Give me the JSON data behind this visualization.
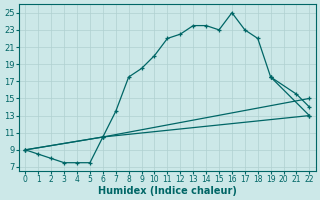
{
  "xlabel": "Humidex (Indice chaleur)",
  "bg_color": "#cce8e8",
  "grid_color": "#b0d0d0",
  "line_color": "#006666",
  "xlim": [
    -0.5,
    22.5
  ],
  "ylim": [
    6.5,
    26.0
  ],
  "xticks": [
    0,
    1,
    2,
    3,
    4,
    5,
    6,
    7,
    8,
    9,
    10,
    11,
    12,
    13,
    14,
    15,
    16,
    17,
    18,
    19,
    20,
    21,
    22
  ],
  "yticks": [
    7,
    9,
    11,
    13,
    15,
    17,
    19,
    21,
    23,
    25
  ],
  "curve1_x": [
    0,
    1,
    2,
    3,
    4,
    5,
    6,
    7,
    8,
    9,
    10,
    11,
    12,
    13,
    14,
    15,
    16,
    17,
    18,
    19
  ],
  "curve1_y": [
    9,
    8.5,
    8,
    7.5,
    7.5,
    7.5,
    10.5,
    13.5,
    17.5,
    18.5,
    20,
    22,
    22.5,
    23.5,
    23.5,
    23,
    25,
    23,
    22,
    17.5
  ],
  "curve2_x": [
    0,
    6,
    22
  ],
  "curve2_y": [
    9,
    10.5,
    15
  ],
  "curve3_x": [
    0,
    6,
    22
  ],
  "curve3_y": [
    9,
    10.5,
    13
  ],
  "curve4_x": [
    19,
    21,
    22
  ],
  "curve4_y": [
    17.5,
    15.5,
    14
  ],
  "curve5_x": [
    19,
    22
  ],
  "curve5_y": [
    17.5,
    13
  ]
}
